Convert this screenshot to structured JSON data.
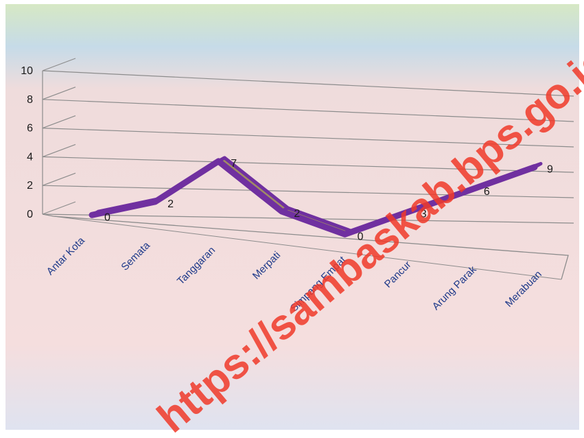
{
  "chart_data": {
    "type": "line",
    "categories": [
      "Antar Kota",
      "Semata",
      "Tanggaran",
      "Merpati",
      "Simpang Empat",
      "Pancur",
      "Arung Parak",
      "Merabuan"
    ],
    "values": [
      0,
      2,
      7,
      2,
      0,
      3,
      6,
      9
    ],
    "ylim": [
      0,
      10
    ],
    "yticks": [
      "0",
      "2",
      "4",
      "6",
      "8",
      "10"
    ],
    "grid": true,
    "style": "3d-line",
    "colors": {
      "line": "#7030a0",
      "ribbon": "#a08c64",
      "tick_text": "#1f3a8a",
      "background_top": "#d9e7c4",
      "background_mid": "#f2d9d9"
    }
  },
  "watermark": {
    "text": "https://sambaskab.bps.go.id"
  }
}
